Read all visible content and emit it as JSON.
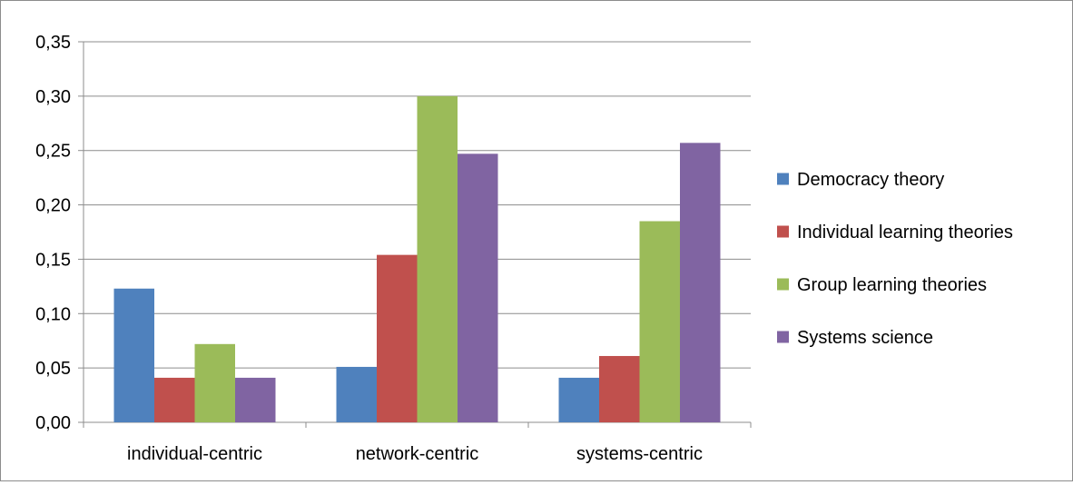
{
  "chart_data": {
    "type": "bar",
    "categories": [
      "individual-centric",
      "network-centric",
      "systems-centric"
    ],
    "series": [
      {
        "name": "Democracy theory",
        "color": "#4F81BD",
        "values": [
          0.123,
          0.051,
          0.041
        ]
      },
      {
        "name": "Individual learning theories",
        "color": "#C0504D",
        "values": [
          0.041,
          0.154,
          0.061
        ]
      },
      {
        "name": "Group learning theories",
        "color": "#9BBB59",
        "values": [
          0.072,
          0.3,
          0.185
        ]
      },
      {
        "name": "Systems science",
        "color": "#8064A2",
        "values": [
          0.041,
          0.247,
          0.257
        ]
      }
    ],
    "yticks": [
      "0,00",
      "0,05",
      "0,10",
      "0,15",
      "0,20",
      "0,25",
      "0,30",
      "0,35"
    ],
    "ylim": [
      0,
      0.35
    ],
    "grid": true,
    "legend_position": "right",
    "title": "",
    "xlabel": "",
    "ylabel": ""
  }
}
